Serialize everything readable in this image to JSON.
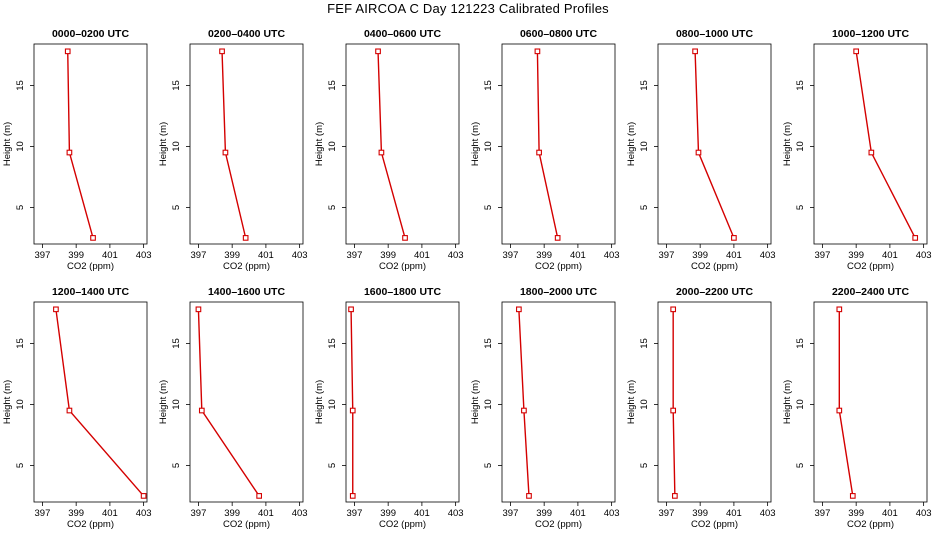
{
  "title": "FEF AIRCOA C  Day 121223  Calibrated Profiles",
  "colors": {
    "line": "#d40000",
    "marker": "#d40000",
    "axis": "#000000"
  },
  "chart_data": {
    "type": "line",
    "xlabel": "CO2 (ppm)",
    "ylabel": "Height (m)",
    "xlim": [
      396.5,
      403.2
    ],
    "ylim": [
      2.0,
      18.4
    ],
    "xticks": [
      397,
      399,
      401,
      403
    ],
    "yticks": [
      5,
      10,
      15
    ],
    "heights": [
      2.5,
      9.5,
      17.8
    ],
    "panels": [
      {
        "title": "0000–0200 UTC",
        "co2": [
          400.0,
          398.6,
          398.5
        ]
      },
      {
        "title": "0200–0400 UTC",
        "co2": [
          399.8,
          398.6,
          398.4
        ]
      },
      {
        "title": "0400–0600 UTC",
        "co2": [
          400.0,
          398.6,
          398.4
        ]
      },
      {
        "title": "0600–0800 UTC",
        "co2": [
          399.8,
          398.7,
          398.6
        ]
      },
      {
        "title": "0800–1000 UTC",
        "co2": [
          401.0,
          398.9,
          398.7
        ]
      },
      {
        "title": "1000–1200 UTC",
        "co2": [
          402.5,
          399.9,
          399.0
        ]
      },
      {
        "title": "1200–1400 UTC",
        "co2": [
          403.0,
          398.6,
          397.8
        ]
      },
      {
        "title": "1400–1600 UTC",
        "co2": [
          400.6,
          397.2,
          397.0
        ]
      },
      {
        "title": "1600–1800 UTC",
        "co2": [
          396.9,
          396.9,
          396.8
        ]
      },
      {
        "title": "1800–2000 UTC",
        "co2": [
          398.1,
          397.8,
          397.5
        ]
      },
      {
        "title": "2000–2200 UTC",
        "co2": [
          397.5,
          397.4,
          397.4
        ]
      },
      {
        "title": "2200–2400 UTC",
        "co2": [
          398.8,
          398.0,
          398.0
        ]
      }
    ]
  }
}
